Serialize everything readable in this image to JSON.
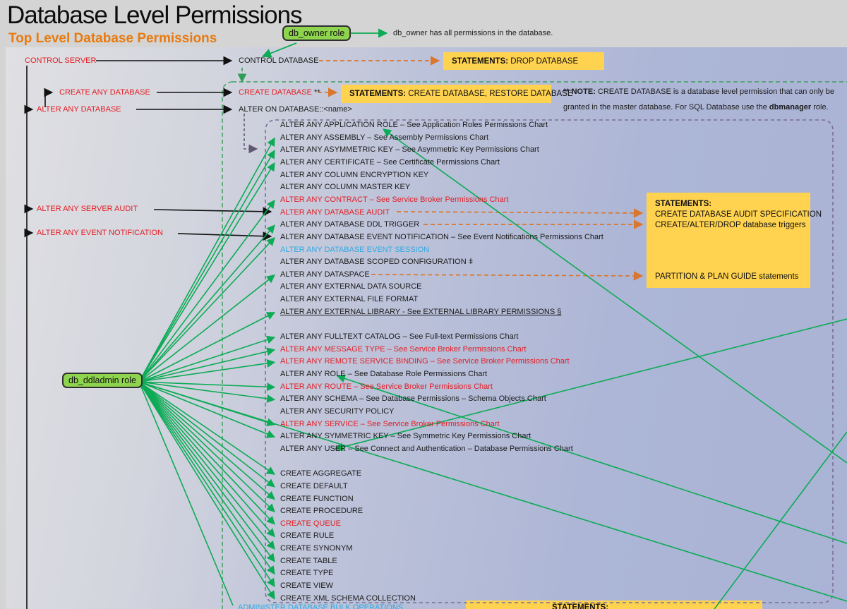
{
  "title": "Database Level Permissions",
  "subtitle": "Top Level Database Permissions",
  "roles": {
    "db_owner": {
      "label": "db_owner role",
      "note": "db_owner has all permissions in the database."
    },
    "db_ddladmin": {
      "label": "db_ddladmin role"
    }
  },
  "server_permissions": [
    "CONTROL SERVER",
    "CREATE ANY DATABASE",
    "ALTER ANY DATABASE",
    "ALTER ANY SERVER AUDIT",
    "ALTER ANY EVENT NOTIFICATION"
  ],
  "database_permissions": {
    "control": "CONTROL DATABASE",
    "create": "CREATE DATABASE",
    "create_suffix": " **",
    "alter_on": "ALTER ON DATABASE::<name>"
  },
  "statement_boxes": {
    "drop": {
      "title": "STATEMENTS:",
      "body": " DROP DATABASE"
    },
    "create": {
      "title": "STATEMENTS:",
      "body": " CREATE DATABASE, RESTORE DATABASE"
    },
    "audit": {
      "title": "STATEMENTS:",
      "line1": "CREATE DATABASE AUDIT SPECIFICATION",
      "line2": "CREATE/ALTER/DROP database triggers",
      "line3": "PARTITION & PLAN GUIDE statements"
    },
    "bottom": {
      "title": "STATEMENTS:"
    }
  },
  "note": {
    "prefix": "** NOTE:",
    "line1_rest": " CREATE DATABASE is a database level permission that can only be",
    "line2_pre": "granted in the master database. For SQL Database use the ",
    "line2_bold": "dbmanager",
    "line2_post": " role."
  },
  "admin_item": {
    "label": "ADMINISTER DATABASE BULK OPERATIONS"
  },
  "permission_items": [
    {
      "row": 0,
      "label": "ALTER ANY APPLICATION ROLE – See Application Roles Permissions Chart",
      "color": "black",
      "green": false
    },
    {
      "row": 1,
      "label": "ALTER ANY ASSEMBLY – See Assembly Permissions Chart",
      "color": "black",
      "green": true
    },
    {
      "row": 2,
      "label": "ALTER ANY ASYMMETRIC KEY – See Asymmetric Key Permissions Chart",
      "color": "black",
      "green": true
    },
    {
      "row": 3,
      "label": "ALTER ANY CERTIFICATE – See Certificate Permissions Chart",
      "color": "black",
      "green": true
    },
    {
      "row": 4,
      "label": "ALTER ANY COLUMN ENCRYPTION KEY",
      "color": "black",
      "green": false
    },
    {
      "row": 5,
      "label": "ALTER ANY COLUMN MASTER KEY",
      "color": "black",
      "green": false
    },
    {
      "row": 6,
      "label": "ALTER ANY CONTRACT – See Service Broker Permissions Chart",
      "color": "red",
      "green": true
    },
    {
      "row": 7,
      "label": "ALTER ANY DATABASE AUDIT",
      "color": "red",
      "green": false
    },
    {
      "row": 8,
      "label": "ALTER ANY DATABASE DDL TRIGGER",
      "color": "black",
      "green": true
    },
    {
      "row": 9,
      "label": "ALTER ANY DATABASE EVENT NOTIFICATION – See Event Notifications Permissions Chart",
      "color": "black",
      "green": true
    },
    {
      "row": 10,
      "label": "ALTER ANY DATABASE EVENT SESSION",
      "color": "cyan",
      "green": false
    },
    {
      "row": 11,
      "label": "ALTER ANY DATABASE SCOPED CONFIGURATION ǂ",
      "color": "black",
      "green": false
    },
    {
      "row": 12,
      "label": "ALTER ANY DATASPACE",
      "color": "black",
      "green": true
    },
    {
      "row": 13,
      "label": "ALTER ANY EXTERNAL DATA SOURCE",
      "color": "black",
      "green": false
    },
    {
      "row": 14,
      "label": "ALTER ANY EXTERNAL FILE FORMAT",
      "color": "black",
      "green": false
    },
    {
      "row": 15,
      "label": "ALTER ANY EXTERNAL LIBRARY - See EXTERNAL LIBRARY PERMISSIONS §",
      "color": "black",
      "green": true,
      "underline": true
    },
    {
      "row": 17,
      "label": "ALTER ANY FULLTEXT CATALOG – See Full-text Permissions Chart",
      "color": "black",
      "green": true
    },
    {
      "row": 18,
      "label": "ALTER ANY MESSAGE TYPE – See Service Broker Permissions Chart",
      "color": "red",
      "green": true
    },
    {
      "row": 19,
      "label": "ALTER ANY REMOTE SERVICE BINDING – See Service Broker Permissions Chart",
      "color": "red",
      "green": true
    },
    {
      "row": 20,
      "label": "ALTER ANY ROLE – See Database Role Permissions Chart",
      "color": "black",
      "green": false
    },
    {
      "row": 21,
      "label": "ALTER ANY ROUTE – See Service Broker Permissions Chart",
      "color": "red",
      "green": true
    },
    {
      "row": 22,
      "label": "ALTER ANY SCHEMA – See Database Permissions – Schema Objects Chart",
      "color": "black",
      "green": true
    },
    {
      "row": 23,
      "label": "ALTER ANY SECURITY POLICY",
      "color": "black",
      "green": false
    },
    {
      "row": 24,
      "label": "ALTER ANY SERVICE – See Service Broker Permissions Chart",
      "color": "red",
      "green": true
    },
    {
      "row": 25,
      "label": "ALTER ANY SYMMETRIC KEY – See Symmetric Key Permissions Chart",
      "color": "black",
      "green": true
    },
    {
      "row": 26,
      "label": "ALTER ANY USER – See Connect and Authentication – Database Permissions Chart",
      "color": "black",
      "green": false
    },
    {
      "row": 28,
      "label": "CREATE AGGREGATE",
      "color": "black",
      "green": true
    },
    {
      "row": 29,
      "label": "CREATE DEFAULT",
      "color": "black",
      "green": true
    },
    {
      "row": 30,
      "label": "CREATE FUNCTION",
      "color": "black",
      "green": true
    },
    {
      "row": 31,
      "label": "CREATE PROCEDURE",
      "color": "black",
      "green": true
    },
    {
      "row": 32,
      "label": "CREATE QUEUE",
      "color": "red",
      "green": true
    },
    {
      "row": 33,
      "label": "CREATE RULE",
      "color": "black",
      "green": true
    },
    {
      "row": 34,
      "label": "CREATE SYNONYM",
      "color": "black",
      "green": true
    },
    {
      "row": 35,
      "label": "CREATE TABLE",
      "color": "black",
      "green": true
    },
    {
      "row": 36,
      "label": "CREATE TYPE",
      "color": "black",
      "green": true
    },
    {
      "row": 37,
      "label": "CREATE VIEW",
      "color": "black",
      "green": true
    },
    {
      "row": 38,
      "label": "CREATE XML SCHEMA COLLECTION",
      "color": "black",
      "green": true
    }
  ],
  "colors": {
    "green_line": "#0cab55",
    "orange_dash": "#d9772e",
    "red_text": "#e51c23",
    "cyan_text": "#2fa9e1",
    "yellow_box": "#ffd24f",
    "role_fill": "#8ed44e",
    "heading_orange": "#e87a10"
  }
}
